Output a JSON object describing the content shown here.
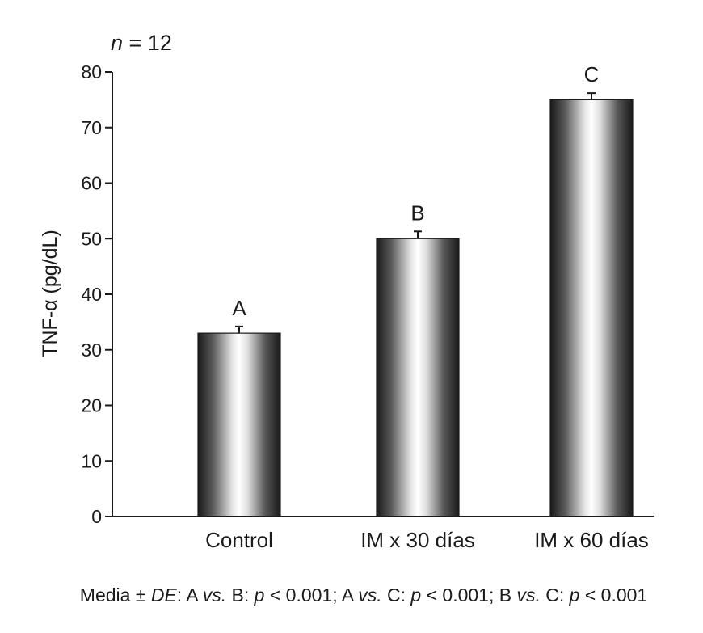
{
  "chart_data": {
    "type": "bar",
    "categories": [
      "Control",
      "IM x 30 días",
      "IM x 60 días"
    ],
    "values": [
      33,
      50,
      75
    ],
    "errors": [
      1.2,
      1.3,
      1.2
    ],
    "group_letters": [
      "A",
      "B",
      "C"
    ],
    "title": "",
    "sample_size": {
      "n": "n",
      "rest": " = 12"
    },
    "xlabel": "",
    "ylabel": "TNF-α (pg/dL)",
    "ylim": [
      0,
      80
    ],
    "yticks": [
      "0",
      "10",
      "20",
      "30",
      "40",
      "50",
      "60",
      "70",
      "80"
    ],
    "grid": false,
    "legend": "none",
    "bar_style": "metallic gradient (black–white–black)",
    "footnote": [
      {
        "text": "Media ± ",
        "italic": false
      },
      {
        "text": "DE",
        "italic": true
      },
      {
        "text": ": A ",
        "italic": false
      },
      {
        "text": "vs.",
        "italic": true
      },
      {
        "text": " B: ",
        "italic": false
      },
      {
        "text": "p",
        "italic": true
      },
      {
        "text": " < 0.001; A ",
        "italic": false
      },
      {
        "text": "vs.",
        "italic": true
      },
      {
        "text": " C: ",
        "italic": false
      },
      {
        "text": "p",
        "italic": true
      },
      {
        "text": " < 0.001; B ",
        "italic": false
      },
      {
        "text": "vs.",
        "italic": true
      },
      {
        "text": " C: ",
        "italic": false
      },
      {
        "text": "p",
        "italic": true
      },
      {
        "text": " < 0.001",
        "italic": false
      }
    ]
  }
}
